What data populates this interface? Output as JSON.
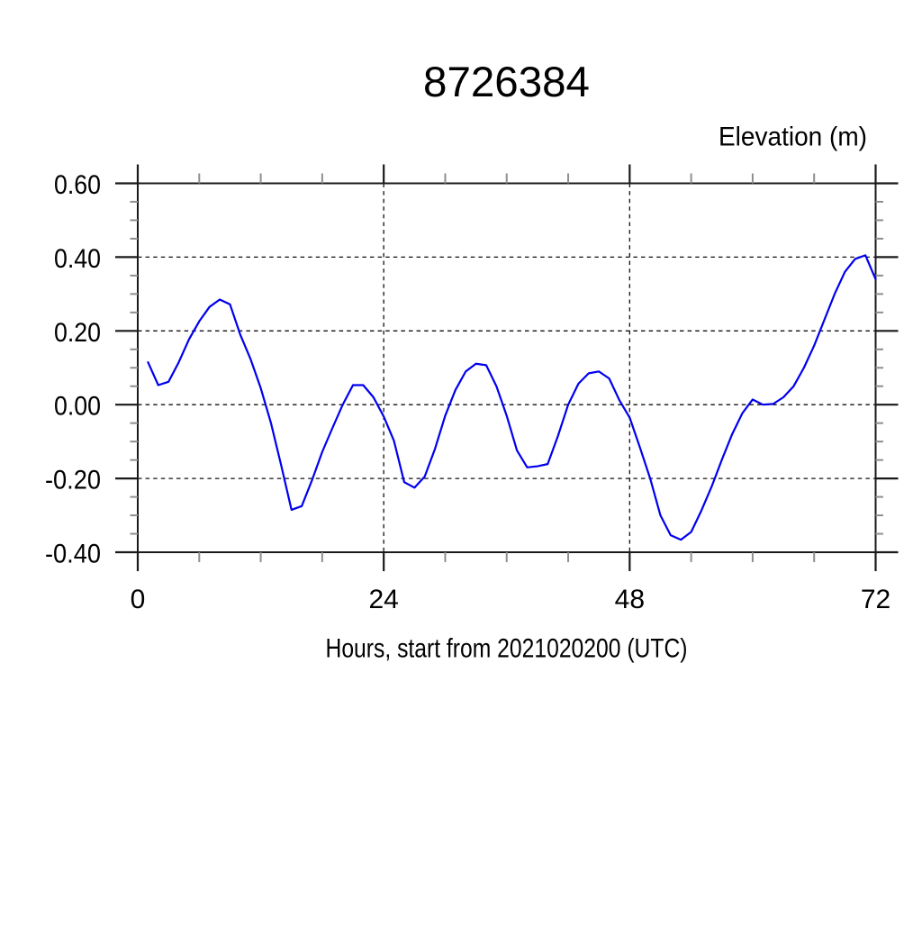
{
  "title": "8726384",
  "y_axis_title": "Elevation (m)",
  "x_axis_label": "Hours, start from 2021020200 (UTC)",
  "x_tick_labels": [
    "0",
    "24",
    "48",
    "72"
  ],
  "y_tick_labels": [
    "0.60",
    "0.40",
    "0.20",
    "0.00",
    "-0.20",
    "-0.40"
  ],
  "colors": {
    "line": "#0000EE",
    "axis": "#1a1a1a",
    "grid": "#111111",
    "minor_tick": "#8f8f8f",
    "text": "#000000",
    "background": "#ffffff"
  },
  "chart_data": {
    "type": "line",
    "title": "8726384",
    "xlabel": "Hours, start from 2021020200 (UTC)",
    "ylabel": "Elevation (m)",
    "xlim": [
      0,
      72
    ],
    "ylim": [
      -0.4,
      0.6
    ],
    "x_major_ticks": [
      0,
      24,
      48,
      72
    ],
    "y_major_ticks": [
      0.6,
      0.4,
      0.2,
      0.0,
      -0.2,
      -0.4
    ],
    "x_minor_step": 6,
    "y_minor_step": 0.05,
    "grid": "dashed",
    "legend": "none",
    "line_color": "#0000EE",
    "series": [
      {
        "name": "elevation",
        "x": [
          1,
          2,
          3,
          4,
          5,
          6,
          7,
          8,
          9,
          10,
          11,
          12,
          13,
          14,
          15,
          16,
          17,
          18,
          19,
          20,
          21,
          22,
          23,
          24,
          25,
          26,
          27,
          28,
          29,
          30,
          31,
          32,
          33,
          34,
          35,
          36,
          37,
          38,
          39,
          40,
          41,
          42,
          43,
          44,
          45,
          46,
          47,
          48,
          49,
          50,
          51,
          52,
          53,
          54,
          55,
          56,
          57,
          58,
          59,
          60,
          61,
          62,
          63,
          64,
          65,
          66,
          67,
          68,
          69,
          70,
          71,
          72
        ],
        "y": [
          0.115,
          0.053,
          0.062,
          0.115,
          0.177,
          0.226,
          0.265,
          0.285,
          0.272,
          0.19,
          0.124,
          0.045,
          -0.05,
          -0.165,
          -0.285,
          -0.275,
          -0.205,
          -0.128,
          -0.063,
          0.0,
          0.053,
          0.053,
          0.02,
          -0.032,
          -0.098,
          -0.21,
          -0.225,
          -0.195,
          -0.12,
          -0.03,
          0.04,
          0.09,
          0.111,
          0.107,
          0.05,
          -0.03,
          -0.124,
          -0.17,
          -0.167,
          -0.161,
          -0.085,
          0.0,
          0.057,
          0.085,
          0.09,
          0.071,
          0.012,
          -0.035,
          -0.116,
          -0.2,
          -0.3,
          -0.354,
          -0.366,
          -0.345,
          -0.287,
          -0.222,
          -0.149,
          -0.08,
          -0.023,
          0.014,
          0.0,
          0.002,
          0.02,
          0.05,
          0.1,
          0.16,
          0.23,
          0.3,
          0.36,
          0.395,
          0.405,
          0.34
        ]
      }
    ]
  }
}
